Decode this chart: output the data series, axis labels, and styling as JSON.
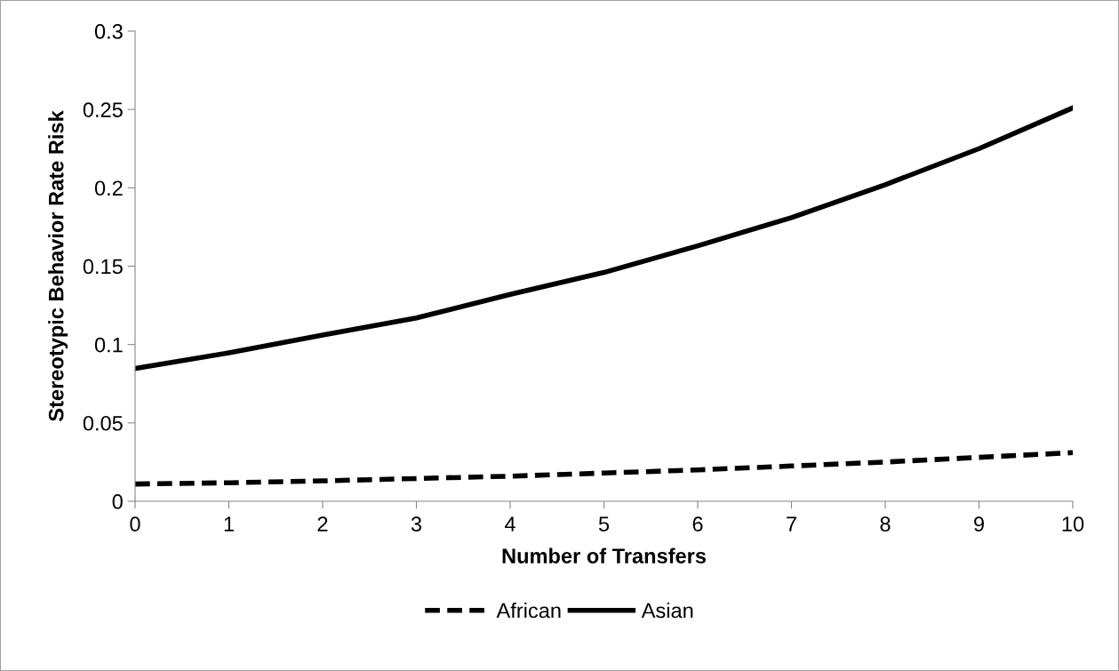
{
  "chart_data": {
    "type": "line",
    "xlabel": "Number of Transfers",
    "ylabel": "Stereotypic Behavior Rate Risk",
    "x": [
      0,
      1,
      2,
      3,
      4,
      5,
      6,
      7,
      8,
      9,
      10
    ],
    "series": [
      {
        "name": "African",
        "color": "#000000",
        "line_style": "dashed",
        "values": [
          0.011,
          0.0118,
          0.013,
          0.0145,
          0.016,
          0.018,
          0.02,
          0.0225,
          0.025,
          0.028,
          0.031
        ]
      },
      {
        "name": "Asian",
        "color": "#000000",
        "line_style": "solid",
        "values": [
          0.0847,
          0.0947,
          0.106,
          0.117,
          0.132,
          0.146,
          0.163,
          0.181,
          0.202,
          0.225,
          0.251
        ]
      }
    ],
    "xlim": [
      0,
      10
    ],
    "xticks": [
      0,
      1,
      2,
      3,
      4,
      5,
      6,
      7,
      8,
      9,
      10
    ],
    "ylim": [
      0,
      0.3
    ],
    "yticks": [
      0,
      0.05,
      0.1,
      0.15,
      0.2,
      0.25,
      0.3
    ],
    "grid": false,
    "legend": "bottom",
    "marker": "none"
  }
}
